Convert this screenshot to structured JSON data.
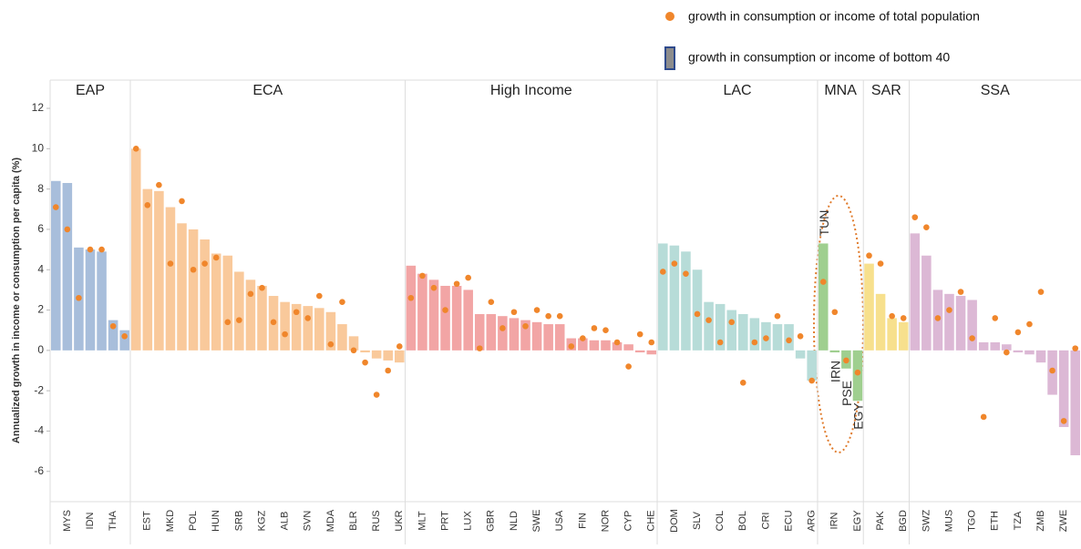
{
  "chart_data": {
    "type": "bar",
    "y_label": "Annualized growth in income or consumption per capita (%)",
    "ylim": [
      -7.5,
      13.4
    ],
    "yticks": [
      12,
      10,
      8,
      6,
      4,
      2,
      0,
      -2,
      -4,
      -6
    ],
    "grid": false,
    "legend_position": "top-right",
    "legend": [
      {
        "name": "growth in consumption or income of total population",
        "color": "#f0862b"
      },
      {
        "name": "growth in consumption or income of bottom 40",
        "color": "#8c8c8c"
      }
    ],
    "groups": [
      {
        "name": "EAP",
        "color": "#a8bedb",
        "categories": [
          null,
          "MYS",
          null,
          "IDN",
          null,
          "THA",
          null
        ],
        "bar_values": [
          8.4,
          8.3,
          5.1,
          5.0,
          4.9,
          1.5,
          1.0
        ],
        "dot_values": [
          7.1,
          6.0,
          2.6,
          5.0,
          5.0,
          1.2,
          0.7
        ]
      },
      {
        "name": "ECA",
        "color": "#f9c99b",
        "categories": [
          null,
          "EST",
          null,
          "MKD",
          null,
          "POL",
          null,
          "HUN",
          null,
          "SRB",
          null,
          "KGZ",
          null,
          "ALB",
          null,
          "SVN",
          null,
          "MDA",
          null,
          "BLR",
          null,
          "RUS",
          null,
          "UKR"
        ],
        "bar_values": [
          10.0,
          8.0,
          7.9,
          7.1,
          6.3,
          6.0,
          5.5,
          4.8,
          4.7,
          3.9,
          3.5,
          3.2,
          2.7,
          2.4,
          2.3,
          2.2,
          2.1,
          1.9,
          1.3,
          0.7,
          -0.1,
          -0.4,
          -0.5,
          -0.6
        ],
        "dot_values": [
          10.0,
          7.2,
          8.2,
          4.3,
          7.4,
          4.0,
          4.3,
          4.6,
          1.4,
          1.5,
          2.8,
          3.1,
          1.4,
          0.8,
          1.9,
          1.6,
          2.7,
          0.3,
          2.4,
          0.0,
          -0.6,
          -2.2,
          -1.0,
          0.2
        ]
      },
      {
        "name": "High Income",
        "color": "#f2a5a5",
        "categories": [
          null,
          "MLT",
          null,
          "PRT",
          null,
          "LUX",
          null,
          "GBR",
          null,
          "NLD",
          null,
          "SWE",
          null,
          "USA",
          null,
          "FIN",
          null,
          "NOR",
          null,
          "CYP",
          null,
          "CHE"
        ],
        "bar_values": [
          4.2,
          3.8,
          3.5,
          3.2,
          3.2,
          3.0,
          1.8,
          1.8,
          1.7,
          1.6,
          1.5,
          1.4,
          1.3,
          1.3,
          0.6,
          0.6,
          0.5,
          0.5,
          0.4,
          0.3,
          -0.1,
          -0.2
        ],
        "dot_values": [
          2.6,
          3.7,
          3.1,
          2.0,
          3.3,
          3.6,
          0.1,
          2.4,
          1.1,
          1.9,
          1.2,
          2.0,
          1.7,
          1.7,
          0.2,
          0.6,
          1.1,
          1.0,
          0.4,
          -0.8,
          0.8,
          0.4
        ]
      },
      {
        "name": "LAC",
        "color": "#b7dcd8",
        "categories": [
          null,
          "DOM",
          null,
          "SLV",
          null,
          "COL",
          null,
          "BOL",
          null,
          "CRI",
          null,
          "ECU",
          null,
          "ARG"
        ],
        "bar_values": [
          5.3,
          5.2,
          4.9,
          4.0,
          2.4,
          2.3,
          2.0,
          1.8,
          1.6,
          1.4,
          1.3,
          1.3,
          -0.4,
          -1.5
        ],
        "dot_values": [
          3.9,
          4.3,
          3.8,
          1.8,
          1.5,
          0.4,
          1.4,
          -1.6,
          0.4,
          0.6,
          1.7,
          0.5,
          0.7,
          -1.5
        ]
      },
      {
        "name": "MNA",
        "color": "#9fcf8f",
        "categories": [
          null,
          "IRN",
          null,
          "EGY"
        ],
        "bar_values": [
          5.3,
          -0.1,
          -0.9,
          -2.5
        ],
        "dot_values": [
          3.4,
          1.9,
          -0.5,
          -1.1
        ]
      },
      {
        "name": "SAR",
        "color": "#f7e08d",
        "categories": [
          null,
          "PAK",
          null,
          "BGD"
        ],
        "bar_values": [
          4.3,
          2.8,
          1.6,
          1.4
        ],
        "dot_values": [
          4.7,
          4.3,
          1.7,
          1.6
        ]
      },
      {
        "name": "SSA",
        "color": "#dcb8d5",
        "categories": [
          null,
          "SWZ",
          null,
          "MUS",
          null,
          "TGO",
          null,
          "ETH",
          null,
          "TZA",
          null,
          "ZMB",
          null,
          "ZWE",
          null
        ],
        "bar_values": [
          5.8,
          4.7,
          3.0,
          2.8,
          2.7,
          2.5,
          0.4,
          0.4,
          0.3,
          -0.1,
          -0.2,
          -0.6,
          -2.2,
          -3.8,
          -5.2
        ],
        "dot_values": [
          6.6,
          6.1,
          1.6,
          2.0,
          2.9,
          0.6,
          -3.3,
          1.6,
          -0.1,
          0.9,
          1.3,
          2.9,
          -1.0,
          -3.5,
          0.1
        ]
      }
    ],
    "annotations": [
      "TUN",
      "IRN",
      "PSE",
      "EGY"
    ]
  }
}
